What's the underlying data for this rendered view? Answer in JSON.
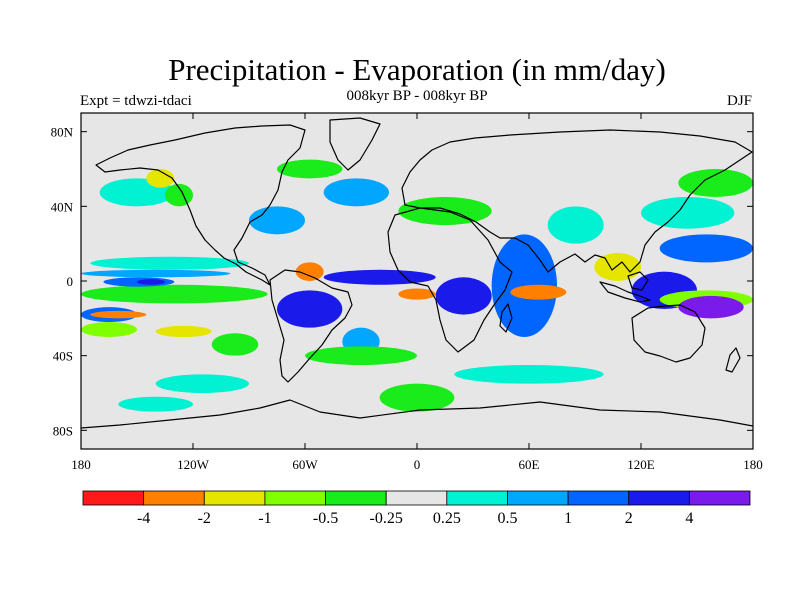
{
  "header": {
    "title": "Precipitation - Evaporation (in mm/day)",
    "experiment": "Expt = tdwzi-tdaci",
    "subtitle": "008kyr BP - 008kyr BP",
    "season": "DJF"
  },
  "chart_data": {
    "type": "heatmap",
    "title": "Precipitation - Evaporation (in mm/day)",
    "x_ticks": [
      {
        "value": -180,
        "label": "180"
      },
      {
        "value": -120,
        "label": "120W"
      },
      {
        "value": -60,
        "label": "60W"
      },
      {
        "value": 0,
        "label": "0"
      },
      {
        "value": 60,
        "label": "60E"
      },
      {
        "value": 120,
        "label": "120E"
      },
      {
        "value": 180,
        "label": "180"
      }
    ],
    "y_ticks": [
      {
        "value": 80,
        "label": "80N"
      },
      {
        "value": 40,
        "label": "40N"
      },
      {
        "value": 0,
        "label": "0"
      },
      {
        "value": -40,
        "label": "40S"
      },
      {
        "value": -80,
        "label": "80S"
      }
    ],
    "xlim": [
      -180,
      180
    ],
    "ylim": [
      -90,
      90
    ],
    "colorbar": {
      "colors": [
        "#ff1a1a",
        "#ff8000",
        "#e5e500",
        "#80ff00",
        "#1aeb1a",
        "#e6e6e6",
        "#00f2d2",
        "#00a6ff",
        "#0066ff",
        "#1a1aeb",
        "#7a1aeb"
      ],
      "labels": [
        "-4",
        "-2",
        "-1",
        "-0.5",
        "-0.25",
        "0.25",
        "0.5",
        "1",
        "2",
        "4"
      ]
    },
    "background_color": "#e6e6e6",
    "regions": [
      {
        "level": 5,
        "lon": [
          -180,
          -150
        ],
        "lat": [
          -2,
          6
        ]
      },
      {
        "level": 4,
        "lon": [
          -180,
          -80
        ],
        "lat": [
          -12,
          -2
        ]
      },
      {
        "level": 6,
        "lon": [
          -175,
          -90
        ],
        "lat": [
          6,
          13
        ]
      },
      {
        "level": 7,
        "lon": [
          -180,
          -100
        ],
        "lat": [
          2,
          6
        ]
      },
      {
        "level": 8,
        "lon": [
          -168,
          -130
        ],
        "lat": [
          -3,
          2
        ]
      },
      {
        "level": 9,
        "lon": [
          -150,
          -135
        ],
        "lat": [
          -2,
          1
        ]
      },
      {
        "level": 8,
        "lon": [
          -180,
          -150
        ],
        "lat": [
          -22,
          -14
        ]
      },
      {
        "level": 1,
        "lon": [
          -175,
          -145
        ],
        "lat": [
          -20,
          -16
        ]
      },
      {
        "level": 3,
        "lon": [
          -180,
          -150
        ],
        "lat": [
          -30,
          -22
        ]
      },
      {
        "level": 2,
        "lon": [
          -140,
          -110
        ],
        "lat": [
          -30,
          -24
        ]
      },
      {
        "level": 4,
        "lon": [
          -110,
          -85
        ],
        "lat": [
          -40,
          -28
        ]
      },
      {
        "level": 6,
        "lon": [
          -170,
          -130
        ],
        "lat": [
          40,
          55
        ]
      },
      {
        "level": 2,
        "lon": [
          -145,
          -130
        ],
        "lat": [
          50,
          60
        ]
      },
      {
        "level": 4,
        "lon": [
          -135,
          -120
        ],
        "lat": [
          40,
          52
        ]
      },
      {
        "level": 7,
        "lon": [
          -90,
          -60
        ],
        "lat": [
          25,
          40
        ]
      },
      {
        "level": 7,
        "lon": [
          -50,
          -15
        ],
        "lat": [
          40,
          55
        ]
      },
      {
        "level": 4,
        "lon": [
          -75,
          -40
        ],
        "lat": [
          55,
          65
        ]
      },
      {
        "level": 1,
        "lon": [
          -65,
          -50
        ],
        "lat": [
          0,
          10
        ]
      },
      {
        "level": 9,
        "lon": [
          -75,
          -40
        ],
        "lat": [
          -25,
          -5
        ]
      },
      {
        "level": 7,
        "lon": [
          -40,
          -20
        ],
        "lat": [
          -40,
          -25
        ]
      },
      {
        "level": 9,
        "lon": [
          -50,
          10
        ],
        "lat": [
          -2,
          6
        ]
      },
      {
        "level": 1,
        "lon": [
          -10,
          10
        ],
        "lat": [
          -10,
          -4
        ]
      },
      {
        "level": 9,
        "lon": [
          10,
          40
        ],
        "lat": [
          -18,
          2
        ]
      },
      {
        "level": 8,
        "lon": [
          40,
          75
        ],
        "lat": [
          -30,
          25
        ]
      },
      {
        "level": 1,
        "lon": [
          50,
          80
        ],
        "lat": [
          -10,
          -2
        ]
      },
      {
        "level": 4,
        "lon": [
          -10,
          40
        ],
        "lat": [
          30,
          45
        ]
      },
      {
        "level": 6,
        "lon": [
          70,
          100
        ],
        "lat": [
          20,
          40
        ]
      },
      {
        "level": 2,
        "lon": [
          95,
          120
        ],
        "lat": [
          0,
          15
        ]
      },
      {
        "level": 9,
        "lon": [
          115,
          150
        ],
        "lat": [
          -15,
          5
        ]
      },
      {
        "level": 3,
        "lon": [
          130,
          180
        ],
        "lat": [
          -15,
          -5
        ]
      },
      {
        "level": 10,
        "lon": [
          140,
          175
        ],
        "lat": [
          -20,
          -8
        ]
      },
      {
        "level": 8,
        "lon": [
          130,
          180
        ],
        "lat": [
          10,
          25
        ]
      },
      {
        "level": 6,
        "lon": [
          120,
          170
        ],
        "lat": [
          28,
          45
        ]
      },
      {
        "level": 4,
        "lon": [
          140,
          180
        ],
        "lat": [
          45,
          60
        ]
      },
      {
        "level": 4,
        "lon": [
          -60,
          0
        ],
        "lat": [
          -45,
          -35
        ]
      },
      {
        "level": 6,
        "lon": [
          -140,
          -90
        ],
        "lat": [
          -60,
          -50
        ]
      },
      {
        "level": 6,
        "lon": [
          20,
          100
        ],
        "lat": [
          -55,
          -45
        ]
      },
      {
        "level": 4,
        "lon": [
          -20,
          20
        ],
        "lat": [
          -70,
          -55
        ]
      },
      {
        "level": 6,
        "lon": [
          -160,
          -120
        ],
        "lat": [
          -70,
          -62
        ]
      }
    ]
  }
}
